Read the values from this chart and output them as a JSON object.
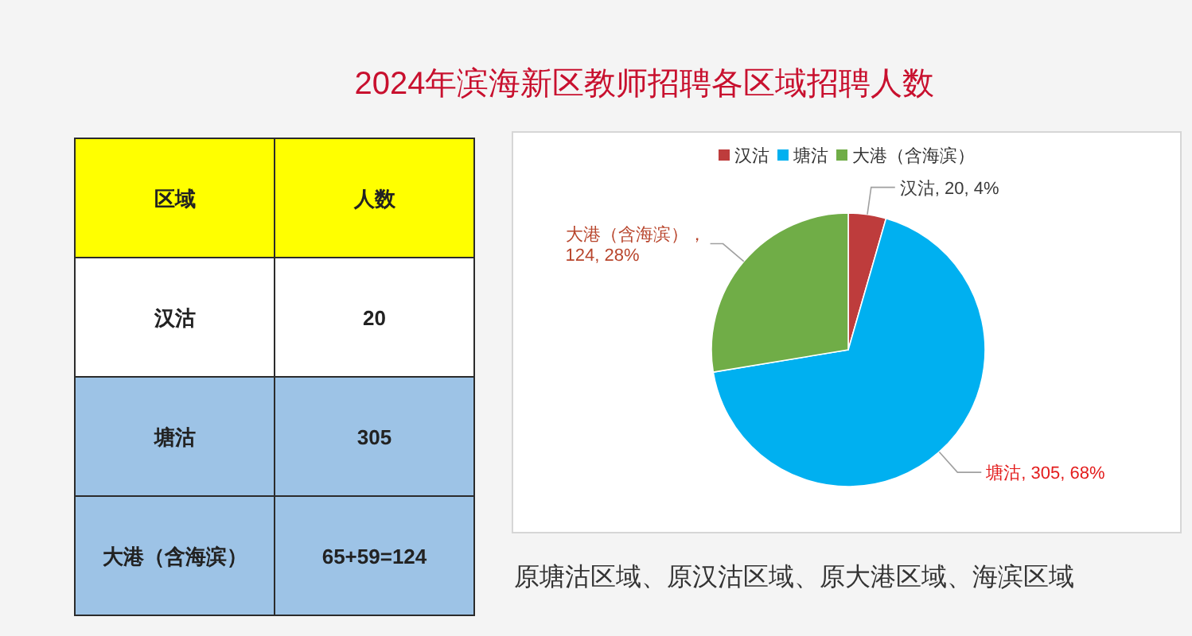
{
  "chart_data": [
    {
      "type": "other",
      "categories": [
        "区域",
        "人数"
      ],
      "cell_labels": [
        [
          "汉沽",
          "20"
        ],
        [
          "塘沽",
          "305"
        ],
        [
          "大港（含海滨）",
          "65+59=124"
        ]
      ],
      "colors": [
        "#ffff00",
        "#ffffff",
        "#9dc3e6",
        "#9dc3e6"
      ]
    },
    {
      "type": "pie",
      "title": "2024年滨海新区教师招聘各区域招聘人数",
      "categories": [
        "汉沽",
        "塘沽",
        "大港（含海滨）"
      ],
      "values": [
        20,
        305,
        124
      ],
      "colors": [
        "#be3c3c",
        "#00b0f0",
        "#70ad47"
      ],
      "value_labels": [
        "汉沽, 20, 4%",
        "塘沽, 305, 68%",
        "大港（含海滨），\n124, 28%"
      ],
      "legend": "top",
      "annotations": [
        "原塘沽区域、原汉沽区域、原大港区域、海滨区域"
      ]
    }
  ]
}
